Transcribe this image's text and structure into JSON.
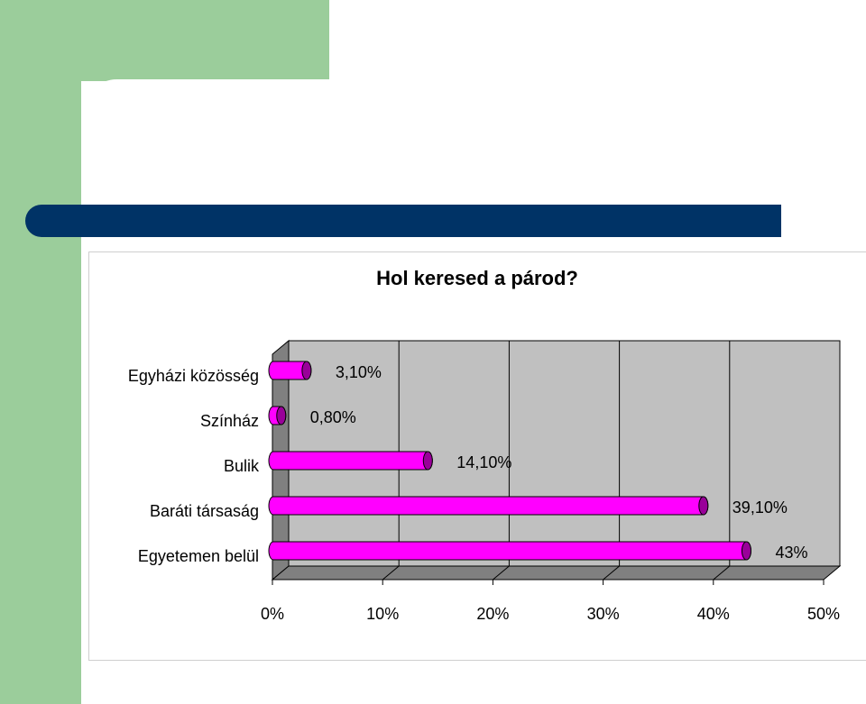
{
  "colors": {
    "green": "#9bcd9b",
    "navy": "#003366",
    "bar": "#ff00ff",
    "bar_dark": "#990099",
    "wall": "#c0c0c0",
    "wall_side": "#808080"
  },
  "chart_data": {
    "type": "bar",
    "orientation": "horizontal",
    "style": "3d-cylinder",
    "title": "Hol keresed a párod?",
    "categories": [
      "Egyházi közösség",
      "Színház",
      "Bulik",
      "Baráti társaság",
      "Egyetemen belül"
    ],
    "values": [
      3.1,
      0.8,
      14.1,
      39.1,
      43
    ],
    "value_labels": [
      "3,10%",
      "0,80%",
      "14,10%",
      "39,10%",
      "43%"
    ],
    "xlim": [
      0,
      50
    ],
    "xticks": [
      "0%",
      "10%",
      "20%",
      "30%",
      "40%",
      "50%"
    ],
    "grid": true,
    "legend": "none"
  }
}
